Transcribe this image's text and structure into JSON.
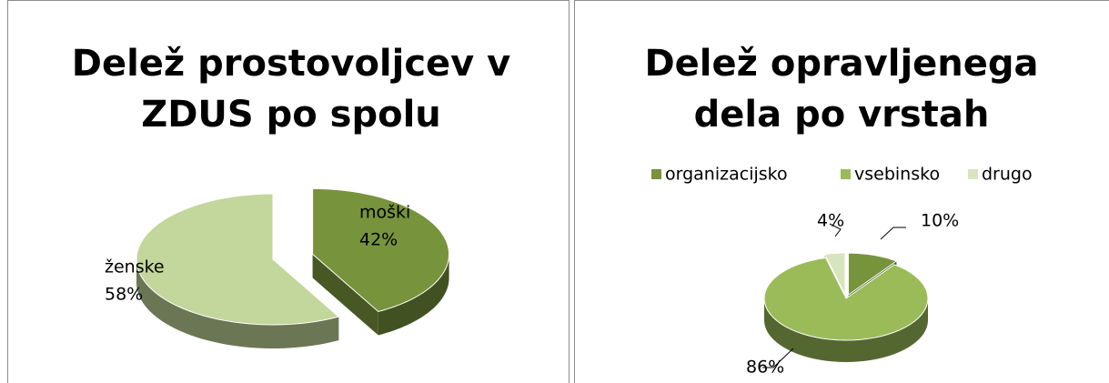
{
  "chart_data": [
    {
      "type": "pie",
      "title": "Delež prostovoljcev v ZDUS po spolu",
      "categories": [
        "moški",
        "ženske"
      ],
      "values": [
        42,
        58
      ],
      "value_labels": [
        "42%",
        "58%"
      ],
      "colors": [
        "#77933c",
        "#c3d69b"
      ]
    },
    {
      "type": "pie",
      "title": "Delež opravljenega dela po vrstah",
      "categories": [
        "organizacijsko",
        "vsebinsko",
        "drugo"
      ],
      "values": [
        10,
        86,
        4
      ],
      "value_labels": [
        "10%",
        "86%",
        "4%"
      ],
      "colors": [
        "#77933c",
        "#9bbb59",
        "#d7e4bd"
      ],
      "legend": "top"
    }
  ]
}
